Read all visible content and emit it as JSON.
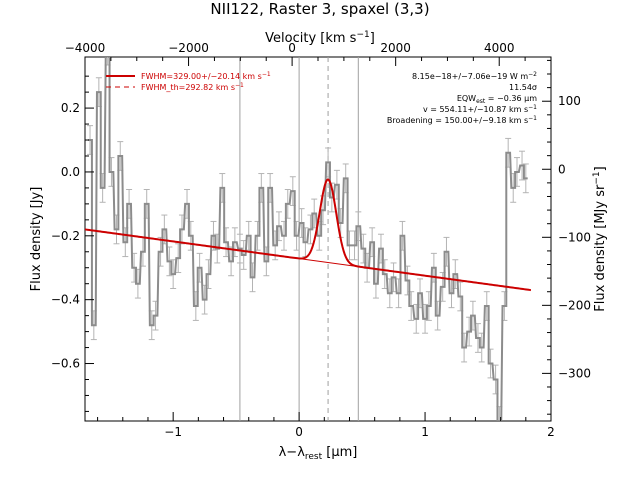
{
  "chart_data": {
    "type": "line",
    "title": "NII122, Raster 3, spaxel (3,3)",
    "xlabel_main": "λ−λ",
    "xlabel_sub": "rest",
    "xlabel_unit": " [μm]",
    "ylabel": "Flux density [Jy]",
    "top_xlabel_main": "Velocity [km s",
    "top_xlabel_exp": "−1",
    "top_xlabel_close": "]",
    "right_ylabel_main": "Flux density [MJy sr",
    "right_ylabel_exp": "−1",
    "right_ylabel_close": "]",
    "xlim": [
      -1.7,
      2.0
    ],
    "ylim": [
      -0.78,
      0.36
    ],
    "top_xlim": [
      -4000,
      5000
    ],
    "right_ylim": [
      -370,
      165
    ],
    "x_ticks": [
      -1,
      0,
      1,
      2
    ],
    "x_tick_labels": [
      "−1",
      "0",
      "1",
      "2"
    ],
    "y_ticks": [
      0.2,
      0.0,
      -0.2,
      -0.4,
      -0.6
    ],
    "y_tick_labels": [
      "0.2",
      "0.0",
      "−0.2",
      "−0.4",
      "−0.6"
    ],
    "top_ticks": [
      -4000,
      -2000,
      0,
      2000,
      4000
    ],
    "top_tick_labels": [
      "−4000",
      "−2000",
      "0",
      "2000",
      "4000"
    ],
    "right_ticks": [
      100,
      0,
      -100,
      -200,
      -300
    ],
    "right_tick_labels": [
      "100",
      "0",
      "−100",
      "−200",
      "−300"
    ],
    "vlines_solid": [
      -0.47,
      0.0,
      0.47
    ],
    "vline_dashed": 0.23,
    "legend": {
      "position": "top-left",
      "entries": [
        {
          "label": "FWHM=329.00+/−20.14 km s",
          "exp": "−1",
          "style": "solid"
        },
        {
          "label": "FWHM_th=292.82 km s",
          "exp": "−1",
          "style": "dashed"
        }
      ]
    },
    "annotations": {
      "line1": "8.15e−18+/−7.06e−19 W m",
      "line1_exp": "−2",
      "line2": "11.54σ",
      "line3_a": "EQW",
      "line3_sub": "est",
      "line3_b": " = −0.36 μm",
      "line4": "v = 554.11+/−10.87 km s",
      "line4_exp": "−1",
      "line5": "Broadening = 150.00+/−9.18 km s",
      "line5_exp": "−1"
    },
    "colors": {
      "data": "#8c8c8c",
      "error": "#b4b4b4",
      "fit": "#cc0000",
      "vline": "#a0a0a0"
    },
    "continuum": {
      "x": [
        -1.7,
        1.84
      ],
      "y": [
        -0.18,
        -0.37
      ]
    },
    "gaussian": {
      "center": 0.23,
      "sigma": 0.065,
      "amplitude": 0.26
    },
    "series": [
      {
        "x": [
          -1.66,
          -1.63,
          -1.59,
          -1.56,
          -1.52,
          -1.49,
          -1.45,
          -1.42,
          -1.38,
          -1.35,
          -1.31,
          -1.28,
          -1.24,
          -1.21,
          -1.17,
          -1.14,
          -1.1,
          -1.07,
          -1.03,
          -1.0,
          -0.96,
          -0.93,
          -0.89,
          -0.86,
          -0.82,
          -0.79,
          -0.75,
          -0.72,
          -0.68,
          -0.65,
          -0.61,
          -0.58,
          -0.54,
          -0.51,
          -0.47,
          -0.44,
          -0.4,
          -0.37,
          -0.33,
          -0.3,
          -0.26,
          -0.23,
          -0.19,
          -0.16,
          -0.12,
          -0.09,
          -0.05,
          -0.02,
          0.02,
          0.05,
          0.09,
          0.12,
          0.16,
          0.19,
          0.23,
          0.26,
          0.3,
          0.33,
          0.37,
          0.4,
          0.44,
          0.47,
          0.51,
          0.54,
          0.58,
          0.61,
          0.65,
          0.68,
          0.72,
          0.75,
          0.79,
          0.82,
          0.86,
          0.89,
          0.93,
          0.96,
          1.0,
          1.03,
          1.07,
          1.1,
          1.14,
          1.17,
          1.21,
          1.24,
          1.28,
          1.31,
          1.35,
          1.38,
          1.42,
          1.45,
          1.49,
          1.52,
          1.56,
          1.59,
          1.63,
          1.66,
          1.7,
          1.73,
          1.77,
          1.8
        ],
        "y": [
          0.1,
          -0.48,
          0.25,
          -0.05,
          0.38,
          0.0,
          -0.18,
          0.05,
          -0.22,
          -0.1,
          -0.3,
          -0.35,
          -0.25,
          -0.1,
          -0.48,
          -0.45,
          -0.25,
          -0.18,
          -0.28,
          -0.32,
          -0.27,
          -0.18,
          -0.1,
          -0.2,
          -0.42,
          -0.3,
          -0.4,
          -0.32,
          -0.2,
          -0.24,
          -0.05,
          -0.22,
          -0.28,
          -0.22,
          -0.24,
          -0.26,
          -0.2,
          -0.33,
          -0.2,
          -0.05,
          -0.28,
          -0.05,
          -0.23,
          -0.17,
          -0.2,
          -0.1,
          -0.06,
          -0.2,
          -0.16,
          -0.22,
          -0.18,
          -0.13,
          -0.2,
          -0.12,
          0.03,
          -0.08,
          -0.04,
          -0.16,
          -0.02,
          -0.23,
          -0.23,
          -0.17,
          -0.24,
          -0.3,
          -0.22,
          -0.35,
          -0.24,
          -0.32,
          -0.38,
          -0.33,
          -0.38,
          -0.2,
          -0.34,
          -0.42,
          -0.46,
          -0.38,
          -0.46,
          -0.42,
          -0.3,
          -0.45,
          -0.36,
          -0.25,
          -0.38,
          -0.32,
          -0.39,
          -0.55,
          -0.5,
          -0.45,
          -0.52,
          -0.55,
          -0.42,
          -0.6,
          -0.65,
          -0.78,
          -0.42,
          0.06,
          -0.05,
          0.0,
          0.02,
          -0.02
        ],
        "err": 0.045
      }
    ]
  }
}
